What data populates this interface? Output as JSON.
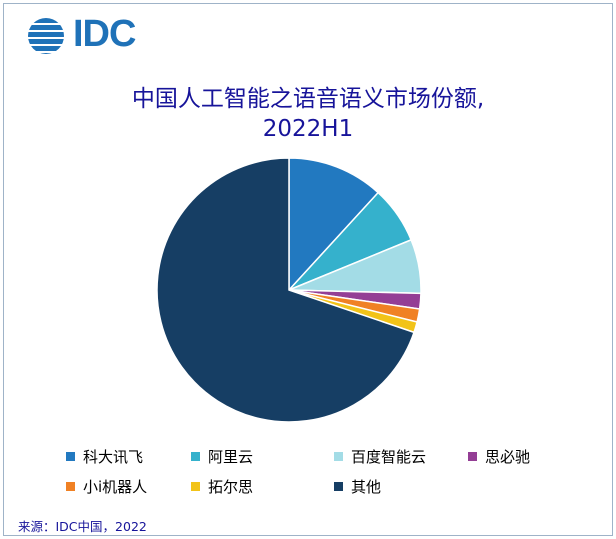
{
  "logo": {
    "text": "IDC",
    "color": "#1f72b8"
  },
  "title_line1": "中国人工智能之语音语义市场份额,",
  "title_line2": "2022H1",
  "source": "来源：IDC中国，2022",
  "chart_data": {
    "type": "pie",
    "title": "中国人工智能之语音语义市场份额, 2022H1",
    "legend_placement": "bottom",
    "slices": [
      {
        "label": "科大讯飞",
        "value": 11.8,
        "color": "#2279c0"
      },
      {
        "label": "阿里云",
        "value": 7.0,
        "color": "#35b1cc"
      },
      {
        "label": "百度智能云",
        "value": 6.6,
        "color": "#a3dce6"
      },
      {
        "label": "思必驰",
        "value": 1.9,
        "color": "#943e95"
      },
      {
        "label": "小i机器人",
        "value": 1.6,
        "color": "#f08124"
      },
      {
        "label": "拓尔思",
        "value": 1.3,
        "color": "#f2c318"
      },
      {
        "label": "其他",
        "value": 69.8,
        "color": "#163e64"
      }
    ]
  }
}
